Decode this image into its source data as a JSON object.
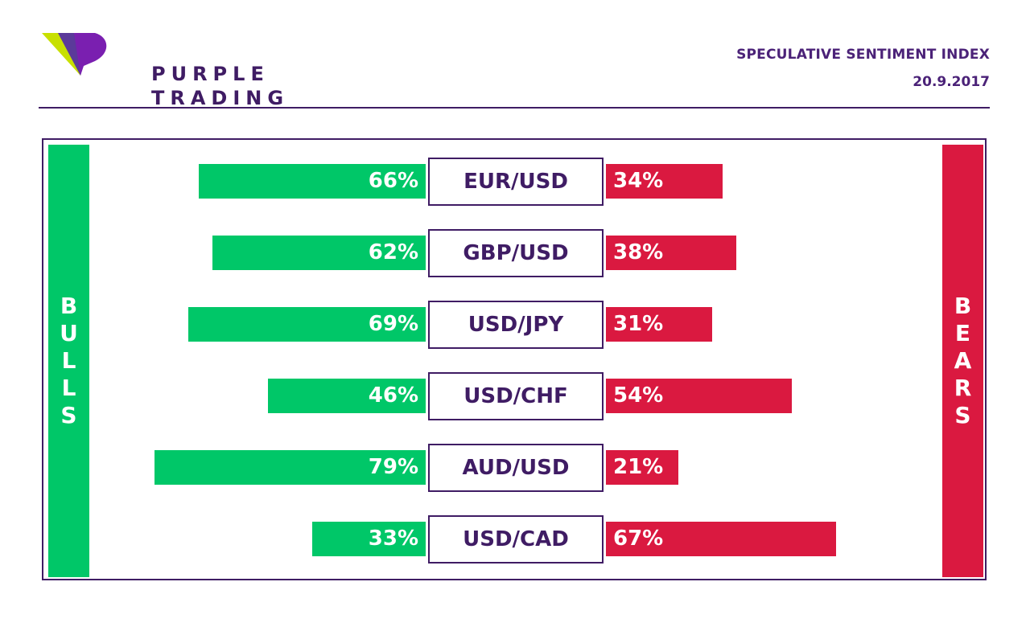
{
  "brand": {
    "line1": "PURPLE",
    "line2": "TRADING"
  },
  "header": {
    "title": "SPECULATIVE SENTIMENT INDEX",
    "date": "20.9.2017"
  },
  "sides": {
    "bulls": "BULLS",
    "bears": "BEARS"
  },
  "colors": {
    "bulls": "#00c768",
    "bears": "#da1940",
    "brand": "#3f1c64"
  },
  "chart_data": {
    "type": "bar",
    "categories": [
      "EUR/USD",
      "GBP/USD",
      "USD/JPY",
      "USD/CHF",
      "AUD/USD",
      "USD/CAD"
    ],
    "series": [
      {
        "name": "BULLS",
        "values": [
          66,
          62,
          69,
          46,
          79,
          33
        ]
      },
      {
        "name": "BEARS",
        "values": [
          34,
          38,
          31,
          54,
          21,
          67
        ]
      }
    ],
    "value_labels": {
      "BULLS": [
        "66%",
        "62%",
        "69%",
        "46%",
        "79%",
        "33%"
      ],
      "BEARS": [
        "34%",
        "38%",
        "31%",
        "54%",
        "21%",
        "67%"
      ]
    },
    "unit": "%",
    "ylim": [
      0,
      100
    ],
    "grid": false
  }
}
